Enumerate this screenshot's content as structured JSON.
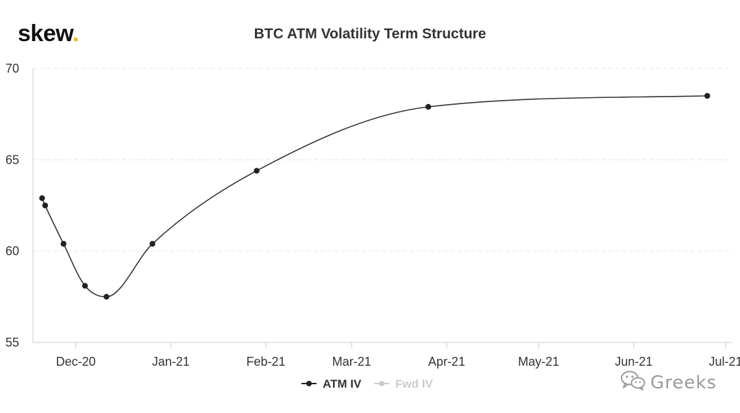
{
  "logo": {
    "text": "skew",
    "dot": "."
  },
  "watermark": {
    "text": "Greeks",
    "icon": "wechat-icon"
  },
  "colors": {
    "line": "#333333",
    "axis": "#cccccc",
    "grid": "#e6e6e6",
    "legend_inactive": "#cccccc",
    "logo_dot": "#e8b71a"
  },
  "chart_data": {
    "type": "line",
    "title": "BTC ATM Volatility Term Structure",
    "xlabel": "",
    "ylabel": "",
    "ylim": [
      55,
      70
    ],
    "yticks": [
      55,
      60,
      65,
      70
    ],
    "xlim": [
      "2020-11-17",
      "2021-07-03"
    ],
    "xticks": [
      {
        "date": "2020-12-01",
        "label": "Dec-20"
      },
      {
        "date": "2021-01-01",
        "label": "Jan-21"
      },
      {
        "date": "2021-02-01",
        "label": "Feb-21"
      },
      {
        "date": "2021-03-01",
        "label": "Mar-21"
      },
      {
        "date": "2021-04-01",
        "label": "Apr-21"
      },
      {
        "date": "2021-05-01",
        "label": "May-21"
      },
      {
        "date": "2021-06-01",
        "label": "Jun-21"
      },
      {
        "date": "2021-07-01",
        "label": "Jul-21"
      }
    ],
    "grid": "horizontal dashed",
    "legend_position": "bottom",
    "series": [
      {
        "name": "ATM IV",
        "active": true,
        "points": [
          {
            "x": "2020-11-20",
            "y": 62.9
          },
          {
            "x": "2020-11-21",
            "y": 62.5
          },
          {
            "x": "2020-11-27",
            "y": 60.4
          },
          {
            "x": "2020-12-04",
            "y": 58.1
          },
          {
            "x": "2020-12-11",
            "y": 57.5
          },
          {
            "x": "2020-12-26",
            "y": 60.4
          },
          {
            "x": "2021-01-29",
            "y": 64.4
          },
          {
            "x": "2021-03-26",
            "y": 67.9
          },
          {
            "x": "2021-06-25",
            "y": 68.5
          }
        ]
      },
      {
        "name": "Fwd IV",
        "active": false,
        "points": []
      }
    ]
  }
}
